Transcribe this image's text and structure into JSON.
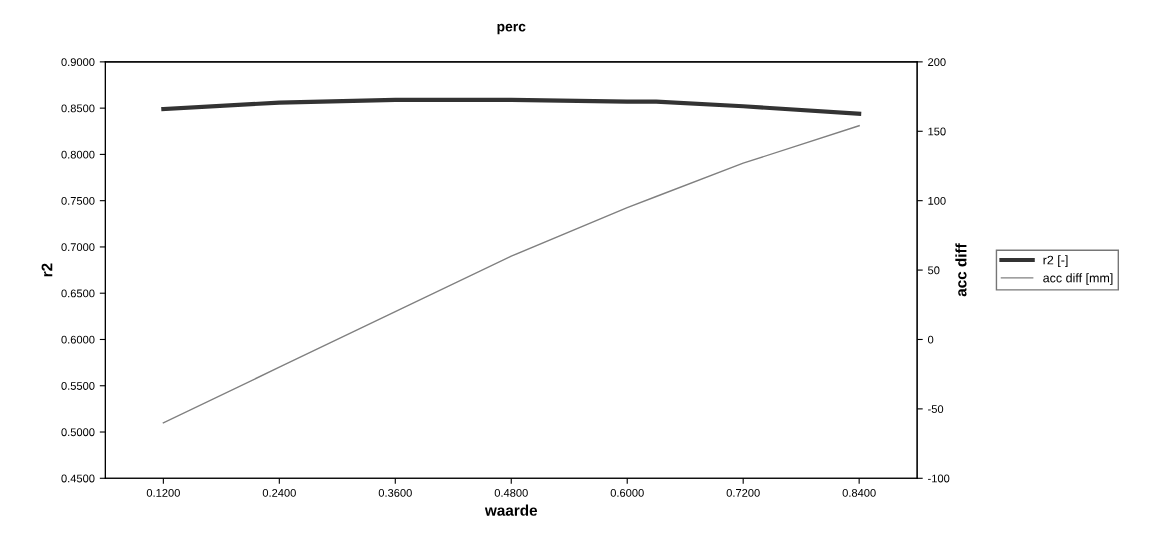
{
  "chart_data": {
    "type": "line",
    "title": "perc",
    "xlabel": "waarde",
    "ylabel": "r2",
    "y2label": "acc diff",
    "x": [
      0.12,
      0.24,
      0.36,
      0.48,
      0.6,
      0.63,
      0.72,
      0.84
    ],
    "series": [
      {
        "name": "r2 [-]",
        "color": "#333333",
        "values": [
          0.849,
          0.856,
          0.859,
          0.859,
          0.857,
          0.857,
          0.852,
          0.844
        ]
      },
      {
        "name": "acc diff [mm]",
        "color": "#808080",
        "axis": "y2",
        "values": [
          -60,
          -20,
          20,
          60,
          95,
          103,
          127,
          154
        ]
      }
    ],
    "xlim": [
      0.06,
      0.9
    ],
    "xticks": [
      {
        "value": 0.12,
        "label": "0.1200"
      },
      {
        "value": 0.24,
        "label": "0.2400"
      },
      {
        "value": 0.36,
        "label": "0.3600"
      },
      {
        "value": 0.48,
        "label": "0.4800"
      },
      {
        "value": 0.6,
        "label": "0.6000"
      },
      {
        "value": 0.72,
        "label": "0.7200"
      },
      {
        "value": 0.84,
        "label": "0.8400"
      }
    ],
    "ylim": [
      0.45,
      0.9
    ],
    "yticks": [
      {
        "value": 0.45,
        "label": "0.4500"
      },
      {
        "value": 0.5,
        "label": "0.5000"
      },
      {
        "value": 0.55,
        "label": "0.5500"
      },
      {
        "value": 0.6,
        "label": "0.6000"
      },
      {
        "value": 0.65,
        "label": "0.6500"
      },
      {
        "value": 0.7,
        "label": "0.7000"
      },
      {
        "value": 0.75,
        "label": "0.7500"
      },
      {
        "value": 0.8,
        "label": "0.8000"
      },
      {
        "value": 0.85,
        "label": "0.8500"
      },
      {
        "value": 0.9,
        "label": "0.9000"
      }
    ],
    "y2lim": [
      -100,
      200
    ],
    "y2ticks": [
      -100,
      -50,
      0,
      50,
      100,
      150,
      200
    ],
    "legend": "right",
    "grid": false,
    "marker": "none"
  }
}
